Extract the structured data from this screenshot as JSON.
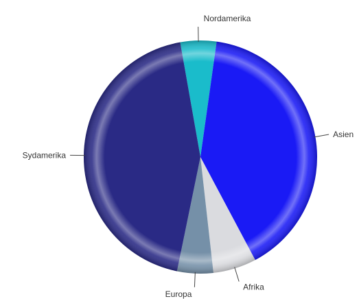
{
  "chart_data": {
    "type": "pie",
    "title": "",
    "start_angle_deg": -10,
    "direction": "clockwise",
    "slices": [
      {
        "label": "Nordamerika",
        "value": 5,
        "color": "#1ABCCB"
      },
      {
        "label": "Asien",
        "value": 40,
        "color": "#1A1AF5"
      },
      {
        "label": "Afrika",
        "value": 6,
        "color": "#DADBDF"
      },
      {
        "label": "Europa",
        "value": 5,
        "color": "#7590A8"
      },
      {
        "label": "Sydamerika",
        "value": 44,
        "color": "#2A2A85"
      }
    ]
  }
}
